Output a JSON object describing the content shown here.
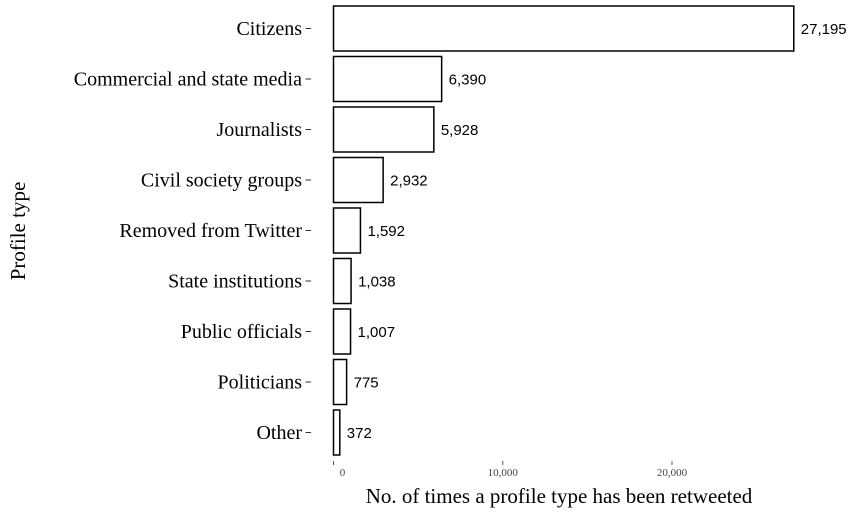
{
  "chart_data": {
    "type": "bar",
    "orientation": "horizontal",
    "title": "",
    "xlabel": "No. of times a profile type has been retweeted",
    "ylabel": "Profile type",
    "categories": [
      "Citizens",
      "Commercial and state media",
      "Journalists",
      "Civil society groups",
      "Removed from Twitter",
      "State institutions",
      "Public officials",
      "Politicians",
      "Other"
    ],
    "values": [
      27195,
      6390,
      5928,
      2932,
      1592,
      1038,
      1007,
      775,
      372
    ],
    "value_labels": [
      "27,195",
      "6,390",
      "5,928",
      "2,932",
      "1,592",
      "1,038",
      "1,007",
      "775",
      "372"
    ],
    "x_ticks": [
      0,
      10000,
      20000
    ],
    "x_tick_labels": [
      "0",
      "10,000",
      "20,000"
    ],
    "xlim": [
      0,
      28000
    ],
    "grid": false,
    "legend": "none",
    "colors": {
      "bar_fill": "#ffffff",
      "bar_stroke": "#000000",
      "text": "#000000"
    }
  }
}
